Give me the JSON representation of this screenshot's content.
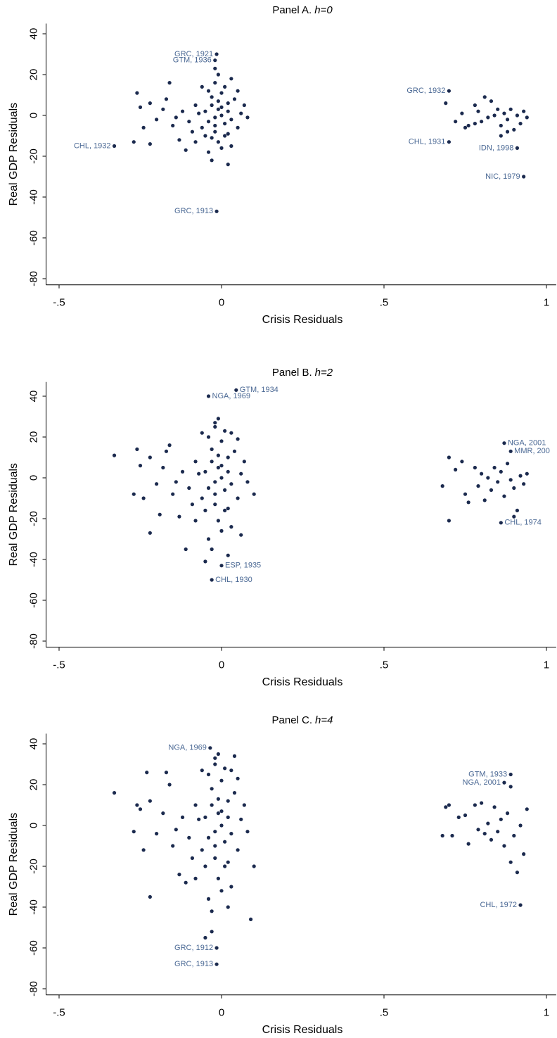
{
  "chart_data": [
    {
      "type": "scatter",
      "title": [
        "Panel A.",
        "h=0"
      ],
      "xlabel": "Crisis Residuals",
      "ylabel": "Real GDP Residuals",
      "color": "#1b2a4e",
      "label_color": "#4a6894",
      "xlim": [
        -0.54,
        1.03
      ],
      "ylim": [
        -83,
        45
      ],
      "xticks": [
        {
          "value": -0.5,
          "label": "-.5"
        },
        0,
        {
          "value": 0.5,
          "label": ".5"
        },
        1
      ],
      "yticks": [
        -80,
        -60,
        -40,
        -20,
        0,
        20,
        40
      ],
      "points": [
        [
          -0.05,
          2
        ],
        [
          -0.04,
          -3
        ],
        [
          -0.03,
          5
        ],
        [
          -0.02,
          -1
        ],
        [
          -0.01,
          3
        ],
        [
          0,
          0
        ],
        [
          0.01,
          -4
        ],
        [
          0.02,
          6
        ],
        [
          -0.06,
          -6
        ],
        [
          -0.03,
          9
        ],
        [
          -0.02,
          -8
        ],
        [
          0,
          11
        ],
        [
          0.01,
          -10
        ],
        [
          -0.04,
          12
        ],
        [
          -0.01,
          -13
        ],
        [
          0.02,
          2
        ],
        [
          0.03,
          -2
        ],
        [
          -0.07,
          1
        ],
        [
          -0.05,
          -10
        ],
        [
          0,
          -16
        ],
        [
          -0.02,
          16
        ],
        [
          0.04,
          8
        ],
        [
          0.05,
          -6
        ],
        [
          -0.08,
          5
        ],
        [
          -0.1,
          -3
        ],
        [
          -0.12,
          2
        ],
        [
          -0.09,
          -8
        ],
        [
          0.06,
          1
        ],
        [
          0.08,
          -1
        ],
        [
          -0.15,
          -5
        ],
        [
          -0.18,
          3
        ],
        [
          -0.2,
          -2
        ],
        [
          -0.22,
          6
        ],
        [
          -0.24,
          -6
        ],
        [
          -0.25,
          4
        ],
        [
          -0.27,
          -13
        ],
        [
          -0.26,
          11
        ],
        [
          -0.22,
          -14
        ],
        [
          -0.17,
          8
        ],
        [
          -0.13,
          -12
        ],
        [
          -0.11,
          -17
        ],
        [
          -0.03,
          -22
        ],
        [
          0.02,
          -24
        ],
        [
          -0.01,
          20
        ],
        [
          -0.02,
          23
        ],
        [
          0.03,
          18
        ],
        [
          -0.16,
          16
        ],
        [
          -0.06,
          14
        ],
        [
          0.01,
          14
        ],
        [
          -0.04,
          -18
        ],
        [
          0.05,
          12
        ],
        [
          0.03,
          -15
        ],
        [
          -0.14,
          -1
        ],
        [
          -0.08,
          -13
        ],
        [
          0.07,
          5
        ],
        [
          -0.01,
          7
        ],
        [
          -0.02,
          -5
        ],
        [
          0,
          4
        ],
        [
          -0.03,
          -11
        ],
        [
          0.02,
          -9
        ],
        [
          0.69,
          6
        ],
        [
          0.72,
          -3
        ],
        [
          0.74,
          1
        ],
        [
          0.76,
          -5
        ],
        [
          0.78,
          5
        ],
        [
          0.79,
          2
        ],
        [
          0.8,
          -3
        ],
        [
          0.81,
          9
        ],
        [
          0.82,
          -1
        ],
        [
          0.83,
          7
        ],
        [
          0.84,
          0
        ],
        [
          0.85,
          3
        ],
        [
          0.86,
          -5
        ],
        [
          0.87,
          1
        ],
        [
          0.88,
          -2
        ],
        [
          0.89,
          3
        ],
        [
          0.9,
          -7
        ],
        [
          0.91,
          0
        ],
        [
          0.92,
          -4
        ],
        [
          0.93,
          2
        ],
        [
          0.94,
          -1
        ],
        [
          0.86,
          -10
        ],
        [
          0.88,
          -8
        ],
        [
          0.75,
          -6
        ],
        [
          0.78,
          -4
        ]
      ],
      "annotations": [
        {
          "text": "GRC, 1921",
          "x": -0.015,
          "y": 30,
          "position": "left"
        },
        {
          "text": "GTM, 1936",
          "x": -0.02,
          "y": 27,
          "position": "left"
        },
        {
          "text": "CHL, 1932",
          "x": -0.33,
          "y": -15,
          "position": "left"
        },
        {
          "text": "GRC, 1913",
          "x": -0.015,
          "y": -47,
          "position": "left"
        },
        {
          "text": "GRC, 1932",
          "x": 0.7,
          "y": 12,
          "position": "left"
        },
        {
          "text": "CHL, 1931",
          "x": 0.7,
          "y": -13,
          "position": "left"
        },
        {
          "text": "IDN, 1998",
          "x": 0.91,
          "y": -16,
          "position": "left"
        },
        {
          "text": "NIC, 1979",
          "x": 0.93,
          "y": -30,
          "position": "left"
        }
      ]
    },
    {
      "type": "scatter",
      "title": [
        "Panel B.",
        "h=2"
      ],
      "xlabel": "Crisis Residuals",
      "ylabel": "Real GDP Residuals",
      "color": "#1b2a4e",
      "label_color": "#4a6894",
      "xlim": [
        -0.54,
        1.03
      ],
      "ylim": [
        -83,
        47
      ],
      "xticks": [
        {
          "value": -0.5,
          "label": "-.5"
        },
        0,
        {
          "value": 0.5,
          "label": ".5"
        },
        1
      ],
      "yticks": [
        -80,
        -60,
        -40,
        -20,
        0,
        20,
        40
      ],
      "points": [
        [
          -0.05,
          3
        ],
        [
          -0.04,
          -5
        ],
        [
          -0.03,
          8
        ],
        [
          -0.02,
          -2
        ],
        [
          -0.01,
          5
        ],
        [
          0,
          0
        ],
        [
          0.01,
          -6
        ],
        [
          0.02,
          10
        ],
        [
          -0.06,
          -10
        ],
        [
          -0.03,
          14
        ],
        [
          -0.02,
          -13
        ],
        [
          0,
          18
        ],
        [
          0.01,
          -16
        ],
        [
          -0.04,
          20
        ],
        [
          -0.01,
          -21
        ],
        [
          0.02,
          3
        ],
        [
          0.03,
          -3
        ],
        [
          -0.07,
          2
        ],
        [
          -0.05,
          -16
        ],
        [
          0,
          -26
        ],
        [
          -0.02,
          25
        ],
        [
          0.04,
          13
        ],
        [
          0.05,
          -10
        ],
        [
          -0.08,
          8
        ],
        [
          -0.1,
          -5
        ],
        [
          -0.12,
          3
        ],
        [
          -0.09,
          -13
        ],
        [
          0.06,
          2
        ],
        [
          0.08,
          -2
        ],
        [
          -0.15,
          -8
        ],
        [
          -0.18,
          5
        ],
        [
          -0.2,
          -3
        ],
        [
          -0.22,
          10
        ],
        [
          -0.24,
          -10
        ],
        [
          -0.25,
          6
        ],
        [
          -0.27,
          -8
        ],
        [
          -0.26,
          14
        ],
        [
          -0.22,
          -27
        ],
        [
          -0.17,
          13
        ],
        [
          -0.13,
          -19
        ],
        [
          -0.11,
          -35
        ],
        [
          -0.03,
          -35
        ],
        [
          0.02,
          -38
        ],
        [
          -0.01,
          29
        ],
        [
          -0.02,
          27
        ],
        [
          0.03,
          22
        ],
        [
          -0.16,
          16
        ],
        [
          -0.06,
          22
        ],
        [
          0.01,
          23
        ],
        [
          -0.04,
          -30
        ],
        [
          0.05,
          19
        ],
        [
          0.03,
          -24
        ],
        [
          -0.14,
          -2
        ],
        [
          -0.08,
          -21
        ],
        [
          0.07,
          8
        ],
        [
          -0.01,
          11
        ],
        [
          -0.02,
          -8
        ],
        [
          0,
          6
        ],
        [
          -0.05,
          -41
        ],
        [
          0.02,
          -15
        ],
        [
          -0.33,
          11
        ],
        [
          -0.19,
          -18
        ],
        [
          0.1,
          -8
        ],
        [
          0.06,
          -28
        ],
        [
          0.68,
          -4
        ],
        [
          0.7,
          10
        ],
        [
          0.7,
          -21
        ],
        [
          0.72,
          4
        ],
        [
          0.74,
          8
        ],
        [
          0.75,
          -8
        ],
        [
          0.76,
          -12
        ],
        [
          0.78,
          5
        ],
        [
          0.79,
          -4
        ],
        [
          0.8,
          2
        ],
        [
          0.81,
          -11
        ],
        [
          0.82,
          0
        ],
        [
          0.83,
          -6
        ],
        [
          0.84,
          5
        ],
        [
          0.85,
          -2
        ],
        [
          0.86,
          3
        ],
        [
          0.87,
          -9
        ],
        [
          0.88,
          7
        ],
        [
          0.89,
          -1
        ],
        [
          0.9,
          -5
        ],
        [
          0.91,
          -16
        ],
        [
          0.92,
          1
        ],
        [
          0.93,
          -3
        ],
        [
          0.94,
          2
        ],
        [
          0.9,
          -19
        ]
      ],
      "annotations": [
        {
          "text": "GTM, 1934",
          "x": 0.045,
          "y": 43,
          "position": "right"
        },
        {
          "text": "NGA, 1969",
          "x": -0.04,
          "y": 40,
          "position": "right"
        },
        {
          "text": "ESP, 1935",
          "x": 0,
          "y": -43,
          "position": "right"
        },
        {
          "text": "CHL, 1930",
          "x": -0.03,
          "y": -50,
          "position": "right"
        },
        {
          "text": "NGA, 2001",
          "x": 0.87,
          "y": 17,
          "position": "right"
        },
        {
          "text": "MMR, 200",
          "x": 0.89,
          "y": 13,
          "position": "right"
        },
        {
          "text": "CHL, 1974",
          "x": 0.86,
          "y": -22,
          "position": "right"
        }
      ]
    },
    {
      "type": "scatter",
      "title": [
        "Panel C.",
        "h=4"
      ],
      "xlabel": "Crisis Residuals",
      "ylabel": "Real GDP Residuals",
      "color": "#1b2a4e",
      "label_color": "#4a6894",
      "xlim": [
        -0.54,
        1.03
      ],
      "ylim": [
        -83,
        45
      ],
      "xticks": [
        {
          "value": -0.5,
          "label": "-.5"
        },
        0,
        {
          "value": 0.5,
          "label": ".5"
        },
        1
      ],
      "yticks": [
        -80,
        -60,
        -40,
        -20,
        0,
        20,
        40
      ],
      "points": [
        [
          -0.05,
          4
        ],
        [
          -0.04,
          -6
        ],
        [
          -0.03,
          10
        ],
        [
          -0.02,
          -3
        ],
        [
          -0.01,
          6
        ],
        [
          0,
          0
        ],
        [
          0.01,
          -8
        ],
        [
          0.02,
          12
        ],
        [
          -0.06,
          -12
        ],
        [
          -0.03,
          18
        ],
        [
          -0.02,
          -16
        ],
        [
          0,
          22
        ],
        [
          0.01,
          -20
        ],
        [
          -0.04,
          25
        ],
        [
          -0.01,
          -26
        ],
        [
          0.02,
          4
        ],
        [
          0.03,
          -4
        ],
        [
          -0.07,
          3
        ],
        [
          -0.05,
          -20
        ],
        [
          0,
          -32
        ],
        [
          -0.02,
          30
        ],
        [
          0.04,
          16
        ],
        [
          0.05,
          -12
        ],
        [
          -0.08,
          10
        ],
        [
          -0.1,
          -6
        ],
        [
          -0.12,
          4
        ],
        [
          -0.09,
          -16
        ],
        [
          0.06,
          3
        ],
        [
          0.08,
          -3
        ],
        [
          -0.15,
          -10
        ],
        [
          -0.18,
          6
        ],
        [
          -0.2,
          -4
        ],
        [
          -0.22,
          12
        ],
        [
          -0.24,
          -12
        ],
        [
          -0.25,
          8
        ],
        [
          -0.27,
          -3
        ],
        [
          -0.26,
          10
        ],
        [
          -0.22,
          -35
        ],
        [
          -0.17,
          26
        ],
        [
          -0.13,
          -24
        ],
        [
          -0.11,
          -28
        ],
        [
          -0.03,
          -42
        ],
        [
          0.02,
          -40
        ],
        [
          -0.01,
          35
        ],
        [
          -0.02,
          33
        ],
        [
          0.03,
          27
        ],
        [
          -0.16,
          20
        ],
        [
          -0.06,
          27
        ],
        [
          0.01,
          28
        ],
        [
          -0.04,
          -36
        ],
        [
          0.05,
          23
        ],
        [
          0.03,
          -30
        ],
        [
          -0.14,
          -2
        ],
        [
          -0.08,
          -26
        ],
        [
          0.07,
          10
        ],
        [
          -0.01,
          13
        ],
        [
          -0.02,
          -10
        ],
        [
          0,
          7
        ],
        [
          -0.05,
          -55
        ],
        [
          0.02,
          -18
        ],
        [
          -0.33,
          16
        ],
        [
          -0.23,
          26
        ],
        [
          0.1,
          -20
        ],
        [
          0.09,
          -46
        ],
        [
          -0.03,
          -52
        ],
        [
          0.04,
          34
        ],
        [
          0.68,
          -5
        ],
        [
          0.69,
          9
        ],
        [
          0.7,
          10
        ],
        [
          0.71,
          -5
        ],
        [
          0.73,
          4
        ],
        [
          0.75,
          5
        ],
        [
          0.76,
          -9
        ],
        [
          0.78,
          10
        ],
        [
          0.79,
          -2
        ],
        [
          0.8,
          11
        ],
        [
          0.81,
          -4
        ],
        [
          0.82,
          1
        ],
        [
          0.83,
          -7
        ],
        [
          0.84,
          9
        ],
        [
          0.85,
          -3
        ],
        [
          0.86,
          3
        ],
        [
          0.87,
          -10
        ],
        [
          0.88,
          6
        ],
        [
          0.89,
          -18
        ],
        [
          0.9,
          -5
        ],
        [
          0.91,
          -23
        ],
        [
          0.92,
          0
        ],
        [
          0.93,
          -14
        ],
        [
          0.94,
          8
        ],
        [
          0.89,
          19
        ]
      ],
      "annotations": [
        {
          "text": "NGA, 1969",
          "x": -0.035,
          "y": 38,
          "position": "left"
        },
        {
          "text": "GTM, 1933",
          "x": 0.89,
          "y": 25,
          "position": "left"
        },
        {
          "text": "NGA, 2001",
          "x": 0.87,
          "y": 21,
          "position": "left"
        },
        {
          "text": "CHL, 1972",
          "x": 0.92,
          "y": -39,
          "position": "left"
        },
        {
          "text": "GRC, 1912",
          "x": -0.015,
          "y": -60,
          "position": "left"
        },
        {
          "text": "GRC, 1913",
          "x": -0.015,
          "y": -68,
          "position": "left"
        }
      ]
    }
  ]
}
